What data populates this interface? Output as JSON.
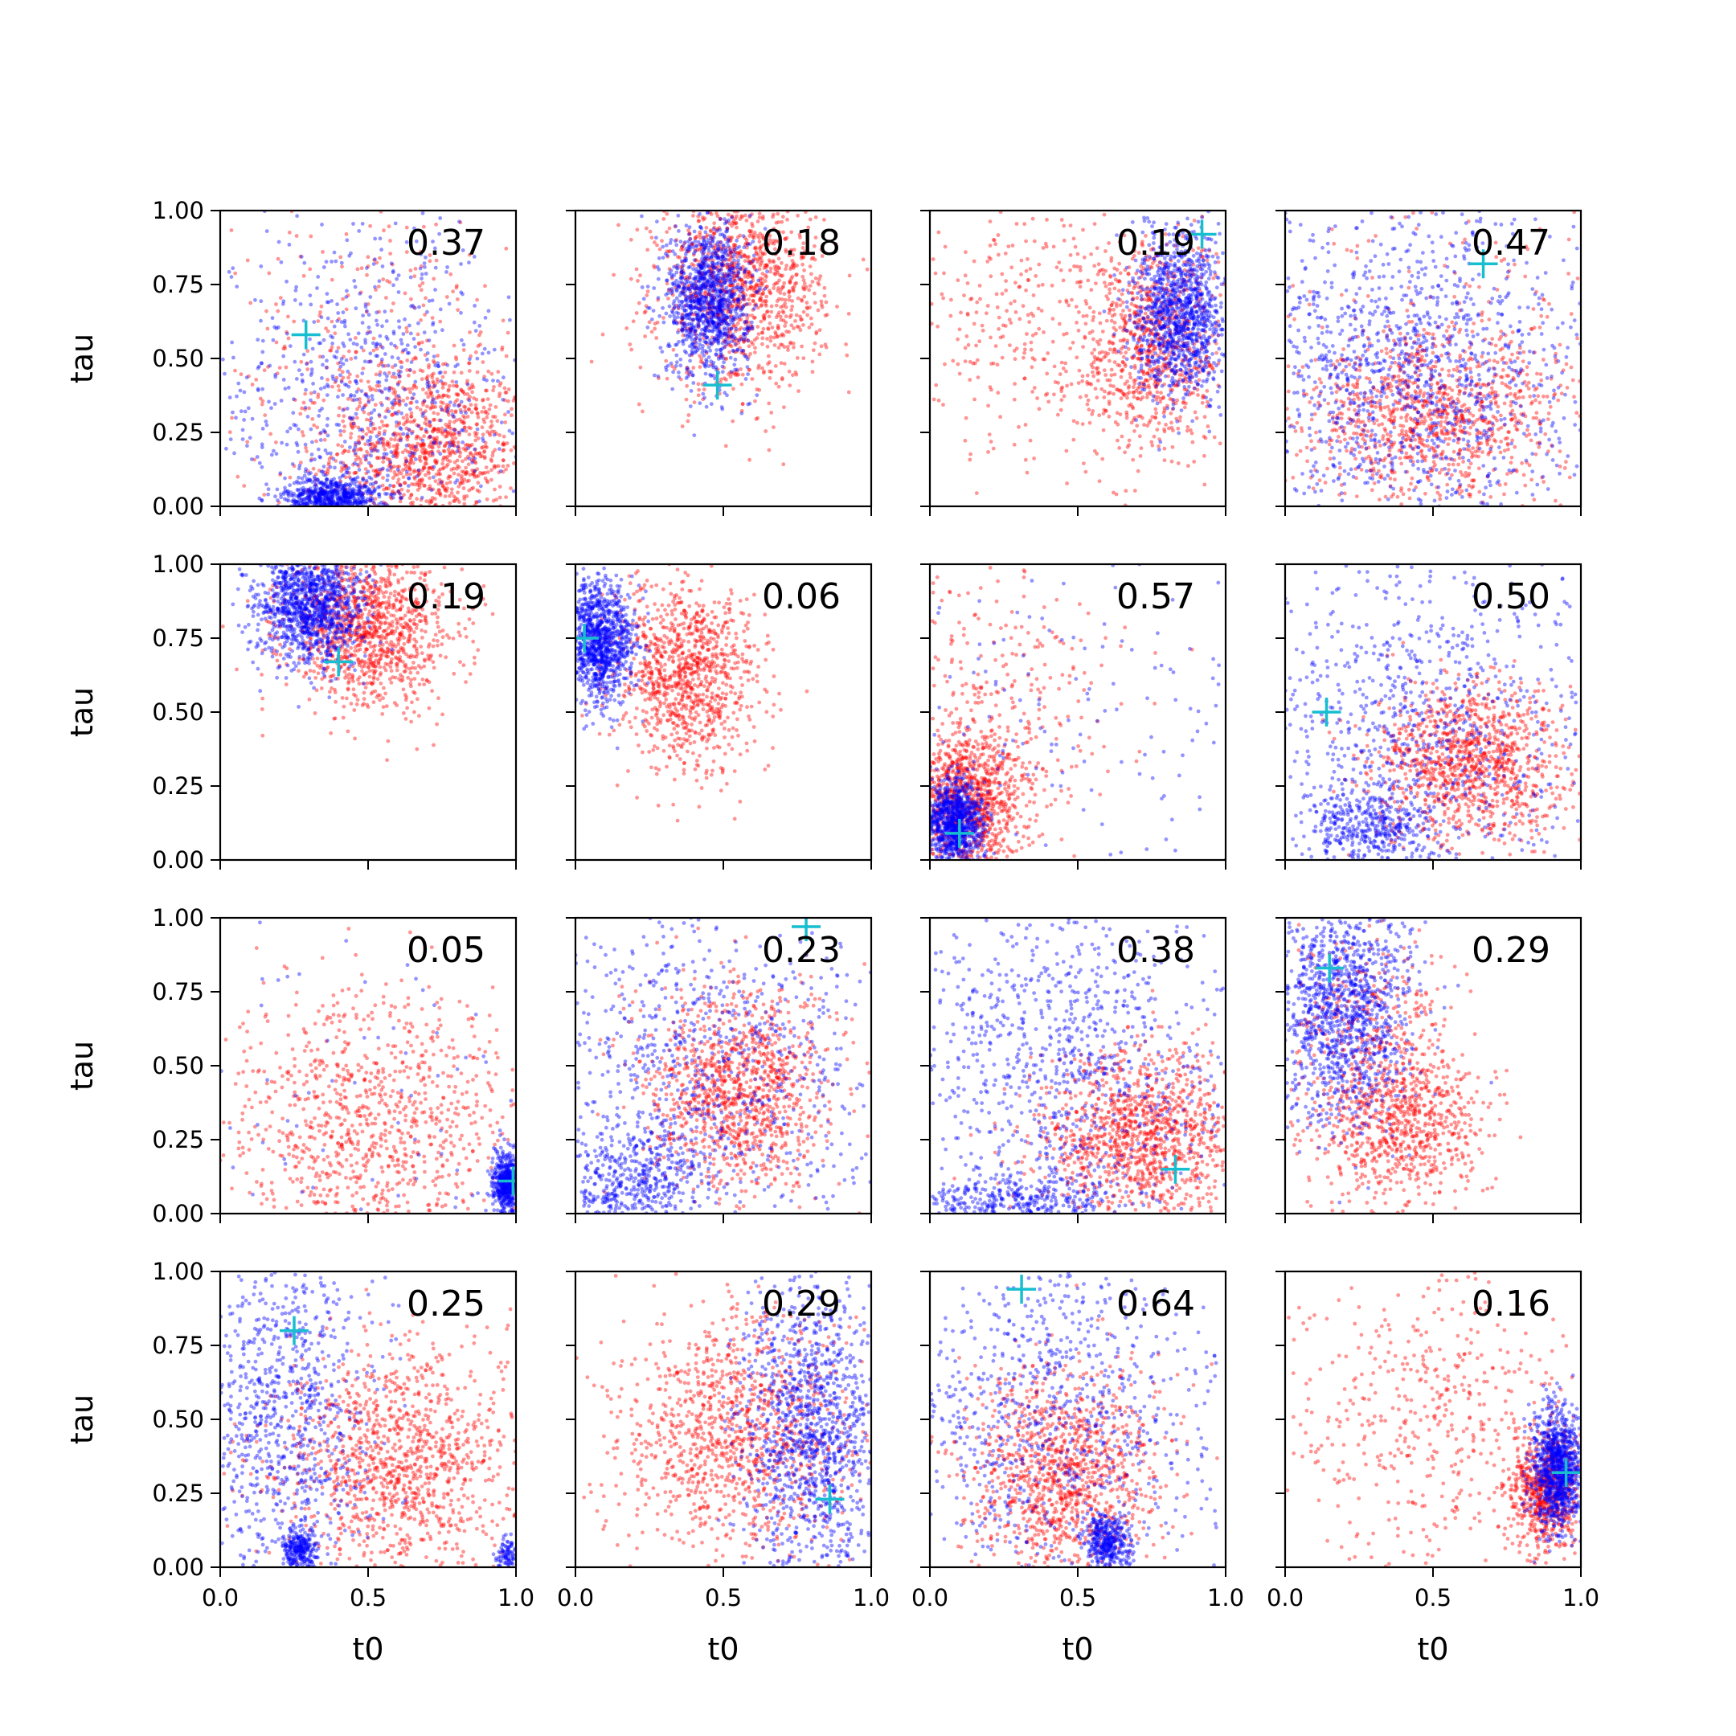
{
  "colors": {
    "series_a": "#ff0000",
    "series_b": "#0000ff",
    "marker": "#17becf",
    "axes": "#000000"
  },
  "chart_data": {
    "type": "scatter",
    "layout": {
      "rows": 4,
      "cols": 4,
      "sharex": true,
      "sharey": true
    },
    "xlabel": "t0",
    "ylabel": "tau",
    "xlim": [
      0,
      1
    ],
    "ylim": [
      0,
      1
    ],
    "xticks": [
      "0.0",
      "0.5",
      "1.0"
    ],
    "yticks": [
      "0.00",
      "0.25",
      "0.50",
      "0.75",
      "1.00"
    ],
    "grid": false,
    "marker_style": "plus",
    "series_colors": [
      "red",
      "blue"
    ],
    "point_style": "small semi-transparent dots, roughly 1000 per series per panel",
    "panels": [
      {
        "value": "0.37",
        "marker": [
          0.29,
          0.58
        ],
        "red": [
          {
            "x": 0.72,
            "y": 0.18,
            "sx": 0.17,
            "sy": 0.15,
            "n": 850
          },
          {
            "x": 0.55,
            "y": 0.45,
            "sx": 0.25,
            "sy": 0.3,
            "n": 350
          }
        ],
        "blue": [
          {
            "x": 0.38,
            "y": 0.03,
            "sx": 0.08,
            "sy": 0.035,
            "n": 550
          },
          {
            "x": 0.5,
            "y": 0.35,
            "sx": 0.3,
            "sy": 0.3,
            "n": 650
          }
        ]
      },
      {
        "value": "0.18",
        "marker": [
          0.48,
          0.41
        ],
        "red": [
          {
            "x": 0.56,
            "y": 0.74,
            "sx": 0.14,
            "sy": 0.17,
            "n": 1100
          }
        ],
        "blue": [
          {
            "x": 0.45,
            "y": 0.7,
            "sx": 0.07,
            "sy": 0.13,
            "n": 1100
          }
        ]
      },
      {
        "value": "0.19",
        "marker": [
          0.92,
          0.92
        ],
        "red": [
          {
            "x": 0.75,
            "y": 0.55,
            "sx": 0.12,
            "sy": 0.18,
            "n": 800
          },
          {
            "x": 0.35,
            "y": 0.6,
            "sx": 0.22,
            "sy": 0.25,
            "n": 300
          }
        ],
        "blue": [
          {
            "x": 0.85,
            "y": 0.65,
            "sx": 0.08,
            "sy": 0.14,
            "n": 1100
          }
        ]
      },
      {
        "value": "0.47",
        "marker": [
          0.67,
          0.82
        ],
        "red": [
          {
            "x": 0.5,
            "y": 0.3,
            "sx": 0.22,
            "sy": 0.14,
            "n": 900
          },
          {
            "x": 0.6,
            "y": 0.5,
            "sx": 0.3,
            "sy": 0.3,
            "n": 200
          }
        ],
        "blue": [
          {
            "x": 0.42,
            "y": 0.45,
            "sx": 0.3,
            "sy": 0.3,
            "n": 1100
          }
        ]
      },
      {
        "value": "0.19",
        "marker": [
          0.4,
          0.67
        ],
        "red": [
          {
            "x": 0.5,
            "y": 0.78,
            "sx": 0.14,
            "sy": 0.13,
            "n": 1100
          }
        ],
        "blue": [
          {
            "x": 0.3,
            "y": 0.86,
            "sx": 0.09,
            "sy": 0.1,
            "n": 1100
          }
        ]
      },
      {
        "value": "0.06",
        "marker": [
          0.03,
          0.75
        ],
        "red": [
          {
            "x": 0.38,
            "y": 0.62,
            "sx": 0.12,
            "sy": 0.16,
            "n": 1000
          }
        ],
        "blue": [
          {
            "x": 0.08,
            "y": 0.74,
            "sx": 0.06,
            "sy": 0.1,
            "n": 1000
          }
        ]
      },
      {
        "value": "0.57",
        "marker": [
          0.1,
          0.09
        ],
        "red": [
          {
            "x": 0.13,
            "y": 0.2,
            "sx": 0.1,
            "sy": 0.12,
            "n": 900
          },
          {
            "x": 0.2,
            "y": 0.5,
            "sx": 0.2,
            "sy": 0.25,
            "n": 250
          }
        ],
        "blue": [
          {
            "x": 0.08,
            "y": 0.13,
            "sx": 0.05,
            "sy": 0.07,
            "n": 900
          },
          {
            "x": 0.5,
            "y": 0.5,
            "sx": 0.35,
            "sy": 0.35,
            "n": 120
          }
        ]
      },
      {
        "value": "0.50",
        "marker": [
          0.14,
          0.5
        ],
        "red": [
          {
            "x": 0.62,
            "y": 0.32,
            "sx": 0.16,
            "sy": 0.14,
            "n": 1100
          }
        ],
        "blue": [
          {
            "x": 0.28,
            "y": 0.1,
            "sx": 0.1,
            "sy": 0.07,
            "n": 350
          },
          {
            "x": 0.45,
            "y": 0.45,
            "sx": 0.3,
            "sy": 0.3,
            "n": 750
          }
        ]
      },
      {
        "value": "0.05",
        "marker": [
          0.99,
          0.11
        ],
        "red": [
          {
            "x": 0.5,
            "y": 0.3,
            "sx": 0.25,
            "sy": 0.22,
            "n": 850
          }
        ],
        "blue": [
          {
            "x": 0.97,
            "y": 0.1,
            "sx": 0.025,
            "sy": 0.05,
            "n": 500
          },
          {
            "x": 0.5,
            "y": 0.5,
            "sx": 0.35,
            "sy": 0.35,
            "n": 60
          }
        ]
      },
      {
        "value": "0.23",
        "marker": [
          0.78,
          0.97
        ],
        "red": [
          {
            "x": 0.55,
            "y": 0.42,
            "sx": 0.15,
            "sy": 0.17,
            "n": 1100
          }
        ],
        "blue": [
          {
            "x": 0.2,
            "y": 0.1,
            "sx": 0.12,
            "sy": 0.1,
            "n": 400
          },
          {
            "x": 0.45,
            "y": 0.5,
            "sx": 0.3,
            "sy": 0.3,
            "n": 700
          }
        ]
      },
      {
        "value": "0.38",
        "marker": [
          0.83,
          0.15
        ],
        "red": [
          {
            "x": 0.72,
            "y": 0.25,
            "sx": 0.17,
            "sy": 0.14,
            "n": 1100
          }
        ],
        "blue": [
          {
            "x": 0.3,
            "y": 0.05,
            "sx": 0.2,
            "sy": 0.04,
            "n": 300
          },
          {
            "x": 0.45,
            "y": 0.5,
            "sx": 0.3,
            "sy": 0.3,
            "n": 800
          }
        ]
      },
      {
        "value": "0.29",
        "marker": [
          0.15,
          0.83
        ],
        "red": [
          {
            "x": 0.38,
            "y": 0.3,
            "sx": 0.15,
            "sy": 0.14,
            "n": 800
          },
          {
            "x": 0.3,
            "y": 0.65,
            "sx": 0.14,
            "sy": 0.15,
            "n": 300
          }
        ],
        "blue": [
          {
            "x": 0.2,
            "y": 0.7,
            "sx": 0.12,
            "sy": 0.2,
            "n": 1100
          }
        ]
      },
      {
        "value": "0.25",
        "marker": [
          0.25,
          0.8
        ],
        "red": [
          {
            "x": 0.6,
            "y": 0.35,
            "sx": 0.2,
            "sy": 0.2,
            "n": 1100
          }
        ],
        "blue": [
          {
            "x": 0.27,
            "y": 0.06,
            "sx": 0.03,
            "sy": 0.03,
            "n": 250
          },
          {
            "x": 0.97,
            "y": 0.04,
            "sx": 0.02,
            "sy": 0.03,
            "n": 80
          },
          {
            "x": 0.2,
            "y": 0.55,
            "sx": 0.15,
            "sy": 0.3,
            "n": 750
          }
        ]
      },
      {
        "value": "0.29",
        "marker": [
          0.86,
          0.23
        ],
        "red": [
          {
            "x": 0.55,
            "y": 0.45,
            "sx": 0.2,
            "sy": 0.2,
            "n": 1100
          }
        ],
        "blue": [
          {
            "x": 0.8,
            "y": 0.45,
            "sx": 0.12,
            "sy": 0.25,
            "n": 1100
          }
        ]
      },
      {
        "value": "0.64",
        "marker": [
          0.31,
          0.94
        ],
        "red": [
          {
            "x": 0.45,
            "y": 0.3,
            "sx": 0.16,
            "sy": 0.18,
            "n": 1100
          }
        ],
        "blue": [
          {
            "x": 0.6,
            "y": 0.08,
            "sx": 0.04,
            "sy": 0.05,
            "n": 350
          },
          {
            "x": 0.4,
            "y": 0.5,
            "sx": 0.3,
            "sy": 0.3,
            "n": 750
          }
        ]
      },
      {
        "value": "0.16",
        "marker": [
          0.95,
          0.32
        ],
        "red": [
          {
            "x": 0.88,
            "y": 0.25,
            "sx": 0.06,
            "sy": 0.1,
            "n": 700
          },
          {
            "x": 0.5,
            "y": 0.5,
            "sx": 0.25,
            "sy": 0.3,
            "n": 450
          }
        ],
        "blue": [
          {
            "x": 0.92,
            "y": 0.33,
            "sx": 0.04,
            "sy": 0.1,
            "n": 1000
          }
        ]
      }
    ]
  }
}
